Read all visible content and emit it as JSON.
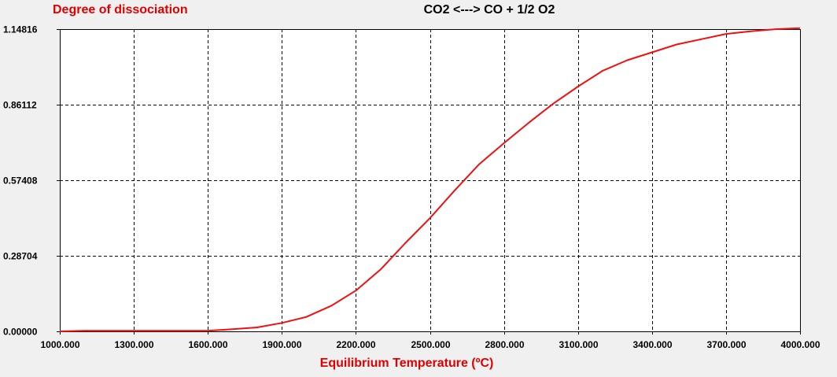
{
  "chart_data": {
    "type": "line",
    "title": "CO2 <---> CO + 1/2 O2",
    "ylabel": "Degree of dissociation",
    "xlabel": "Equilibrium Temperature (ºC)",
    "xlim": [
      1000,
      4000
    ],
    "ylim": [
      0,
      1.14816
    ],
    "x_ticks": [
      "1000.000",
      "1300.000",
      "1600.000",
      "1900.000",
      "2200.000",
      "2500.000",
      "2800.000",
      "3100.000",
      "3400.000",
      "3700.000",
      "4000.000"
    ],
    "x_tick_values": [
      1000,
      1300,
      1600,
      1900,
      2200,
      2500,
      2800,
      3100,
      3400,
      3700,
      4000
    ],
    "y_ticks": [
      "0.00000",
      "0.28704",
      "0.57408",
      "0.86112",
      "1.14816"
    ],
    "y_tick_values": [
      0,
      0.28704,
      0.57408,
      0.86112,
      1.14816
    ],
    "grid": true,
    "series": [
      {
        "color": "#ee1111",
        "x": [
          1000,
          1100,
          1200,
          1300,
          1400,
          1500,
          1600,
          1700,
          1800,
          1900,
          2000,
          2100,
          2200,
          2300,
          2400,
          2500,
          2600,
          2700,
          2800,
          2900,
          3000,
          3100,
          3200,
          3300,
          3400,
          3500,
          3600,
          3700,
          3800,
          3900,
          4000
        ],
        "y": [
          0.0,
          0.002,
          0.002,
          0.002,
          0.002,
          0.002,
          0.002,
          0.008,
          0.015,
          0.032,
          0.055,
          0.097,
          0.155,
          0.235,
          0.335,
          0.43,
          0.535,
          0.635,
          0.715,
          0.792,
          0.865,
          0.93,
          0.99,
          1.03,
          1.06,
          1.09,
          1.11,
          1.13,
          1.14,
          1.148,
          1.152
        ]
      }
    ]
  }
}
